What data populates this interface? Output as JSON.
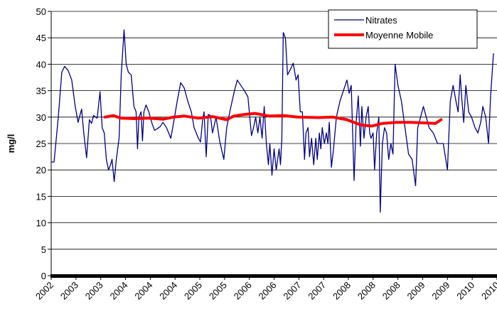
{
  "chart_data": {
    "type": "line",
    "y_label": "mg/l",
    "ylim": [
      0,
      50
    ],
    "yticks": [
      0,
      5,
      10,
      15,
      20,
      25,
      30,
      35,
      40,
      45,
      50
    ],
    "xlim": [
      0,
      630
    ],
    "xticks": [
      {
        "value": 0,
        "label": "2002"
      },
      {
        "value": 35,
        "label": "2003"
      },
      {
        "value": 70,
        "label": "2003"
      },
      {
        "value": 105,
        "label": "2004"
      },
      {
        "value": 140,
        "label": "2004"
      },
      {
        "value": 175,
        "label": "2004"
      },
      {
        "value": 210,
        "label": "2005"
      },
      {
        "value": 245,
        "label": "2005"
      },
      {
        "value": 280,
        "label": "2006"
      },
      {
        "value": 315,
        "label": "2006"
      },
      {
        "value": 350,
        "label": "2007"
      },
      {
        "value": 385,
        "label": "2007"
      },
      {
        "value": 420,
        "label": "2008"
      },
      {
        "value": 455,
        "label": "2008"
      },
      {
        "value": 490,
        "label": "2008"
      },
      {
        "value": 525,
        "label": "2009"
      },
      {
        "value": 560,
        "label": "2009"
      },
      {
        "value": 595,
        "label": "2010"
      },
      {
        "value": 630,
        "label": "2010"
      }
    ],
    "grid": true,
    "legend": "top-right",
    "series": [
      {
        "name": "Nitrates",
        "color": "#000080",
        "width": 1.3,
        "x": [
          0,
          4,
          10,
          15,
          19,
          24,
          29,
          34,
          38,
          43,
          46,
          50,
          54,
          57,
          60,
          65,
          69,
          72,
          75,
          78,
          81,
          84,
          86,
          89,
          92,
          96,
          99,
          103,
          106,
          109,
          113,
          117,
          120,
          122,
          124,
          127,
          129,
          131,
          134,
          138,
          142,
          146,
          150,
          154,
          158,
          163,
          166,
          169,
          173,
          178,
          183,
          188,
          193,
          198,
          202,
          205,
          208,
          211,
          214,
          216,
          219,
          222,
          225,
          228,
          233,
          238,
          244,
          248,
          254,
          259,
          263,
          268,
          273,
          278,
          283,
          286,
          289,
          292,
          295,
          298,
          301,
          304,
          307,
          309,
          312,
          315,
          318,
          320,
          322,
          324,
          326,
          328,
          331,
          334,
          338,
          342,
          346,
          349,
          352,
          355,
          358,
          360,
          363,
          365,
          368,
          371,
          374,
          376,
          379,
          381,
          383,
          386,
          389,
          391,
          393,
          396,
          399,
          403,
          408,
          413,
          418,
          421,
          424,
          428,
          431,
          434,
          437,
          439,
          442,
          445,
          448,
          450,
          452,
          455,
          457,
          460,
          463,
          465,
          468,
          471,
          474,
          477,
          480,
          483,
          486,
          490,
          495,
          500,
          505,
          510,
          515,
          518,
          522,
          526,
          530,
          534,
          540,
          546,
          554,
          560,
          564,
          568,
          572,
          575,
          578,
          580,
          583,
          586,
          590,
          594,
          599,
          603,
          607,
          610,
          614,
          618,
          621,
          625
        ],
        "values": [
          21.5,
          21.5,
          30,
          38.5,
          39.6,
          38.8,
          37,
          32,
          29,
          31.5,
          27,
          22.3,
          29.5,
          28.8,
          30.3,
          29.8,
          34.8,
          28,
          27,
          22,
          20,
          21,
          22,
          17.8,
          22,
          26,
          38,
          46.5,
          40,
          38.5,
          38,
          32,
          31,
          24,
          30,
          31,
          25.5,
          31,
          32.3,
          31,
          29,
          27.5,
          27.8,
          28.2,
          29,
          28,
          27,
          26,
          29,
          33,
          36.5,
          35.5,
          33,
          31,
          28,
          27,
          26,
          25.3,
          29.5,
          31,
          22.5,
          30.5,
          30.3,
          27,
          30,
          25.5,
          22,
          28,
          32,
          35,
          37,
          36,
          35,
          33.8,
          26.5,
          28,
          30,
          27,
          30,
          26,
          32,
          25,
          21,
          25,
          19,
          24,
          20,
          22,
          24,
          21,
          26,
          46,
          45,
          38,
          39,
          40.2,
          37,
          38,
          31,
          31,
          22,
          27,
          28,
          22.5,
          26,
          21,
          26,
          22,
          27,
          24,
          28,
          25,
          27,
          25,
          29,
          20.5,
          24,
          30,
          33,
          35,
          37,
          34.5,
          36,
          18,
          29,
          34,
          24.5,
          32,
          26,
          30,
          32,
          27,
          26,
          27,
          20,
          27,
          30,
          12,
          25,
          28,
          27,
          22,
          25,
          23,
          40,
          36,
          33,
          28,
          23,
          22,
          17,
          28,
          30,
          32,
          30,
          28,
          27,
          25,
          25,
          20,
          33,
          36,
          33,
          31,
          38,
          34,
          29,
          36,
          31,
          30,
          28,
          27,
          29,
          32,
          30,
          25,
          34,
          42
        ]
      },
      {
        "name": "Moyenne Mobile",
        "color": "#ff0000",
        "width": 4,
        "x": [
          76,
          88,
          98,
          118,
          138,
          158,
          173,
          188,
          208,
          228,
          248,
          258,
          273,
          288,
          308,
          328,
          348,
          378,
          398,
          418,
          438,
          453,
          468,
          488,
          508,
          528,
          543,
          551
        ],
        "values": [
          30,
          30.3,
          29.8,
          29.7,
          29.8,
          29.6,
          30,
          30.2,
          29.8,
          30.1,
          29.5,
          30.2,
          30.5,
          30.7,
          30.2,
          30.3,
          30,
          29.9,
          30,
          29.5,
          28.5,
          28.3,
          28.8,
          29,
          29,
          28.9,
          28.8,
          29.5
        ]
      }
    ]
  }
}
